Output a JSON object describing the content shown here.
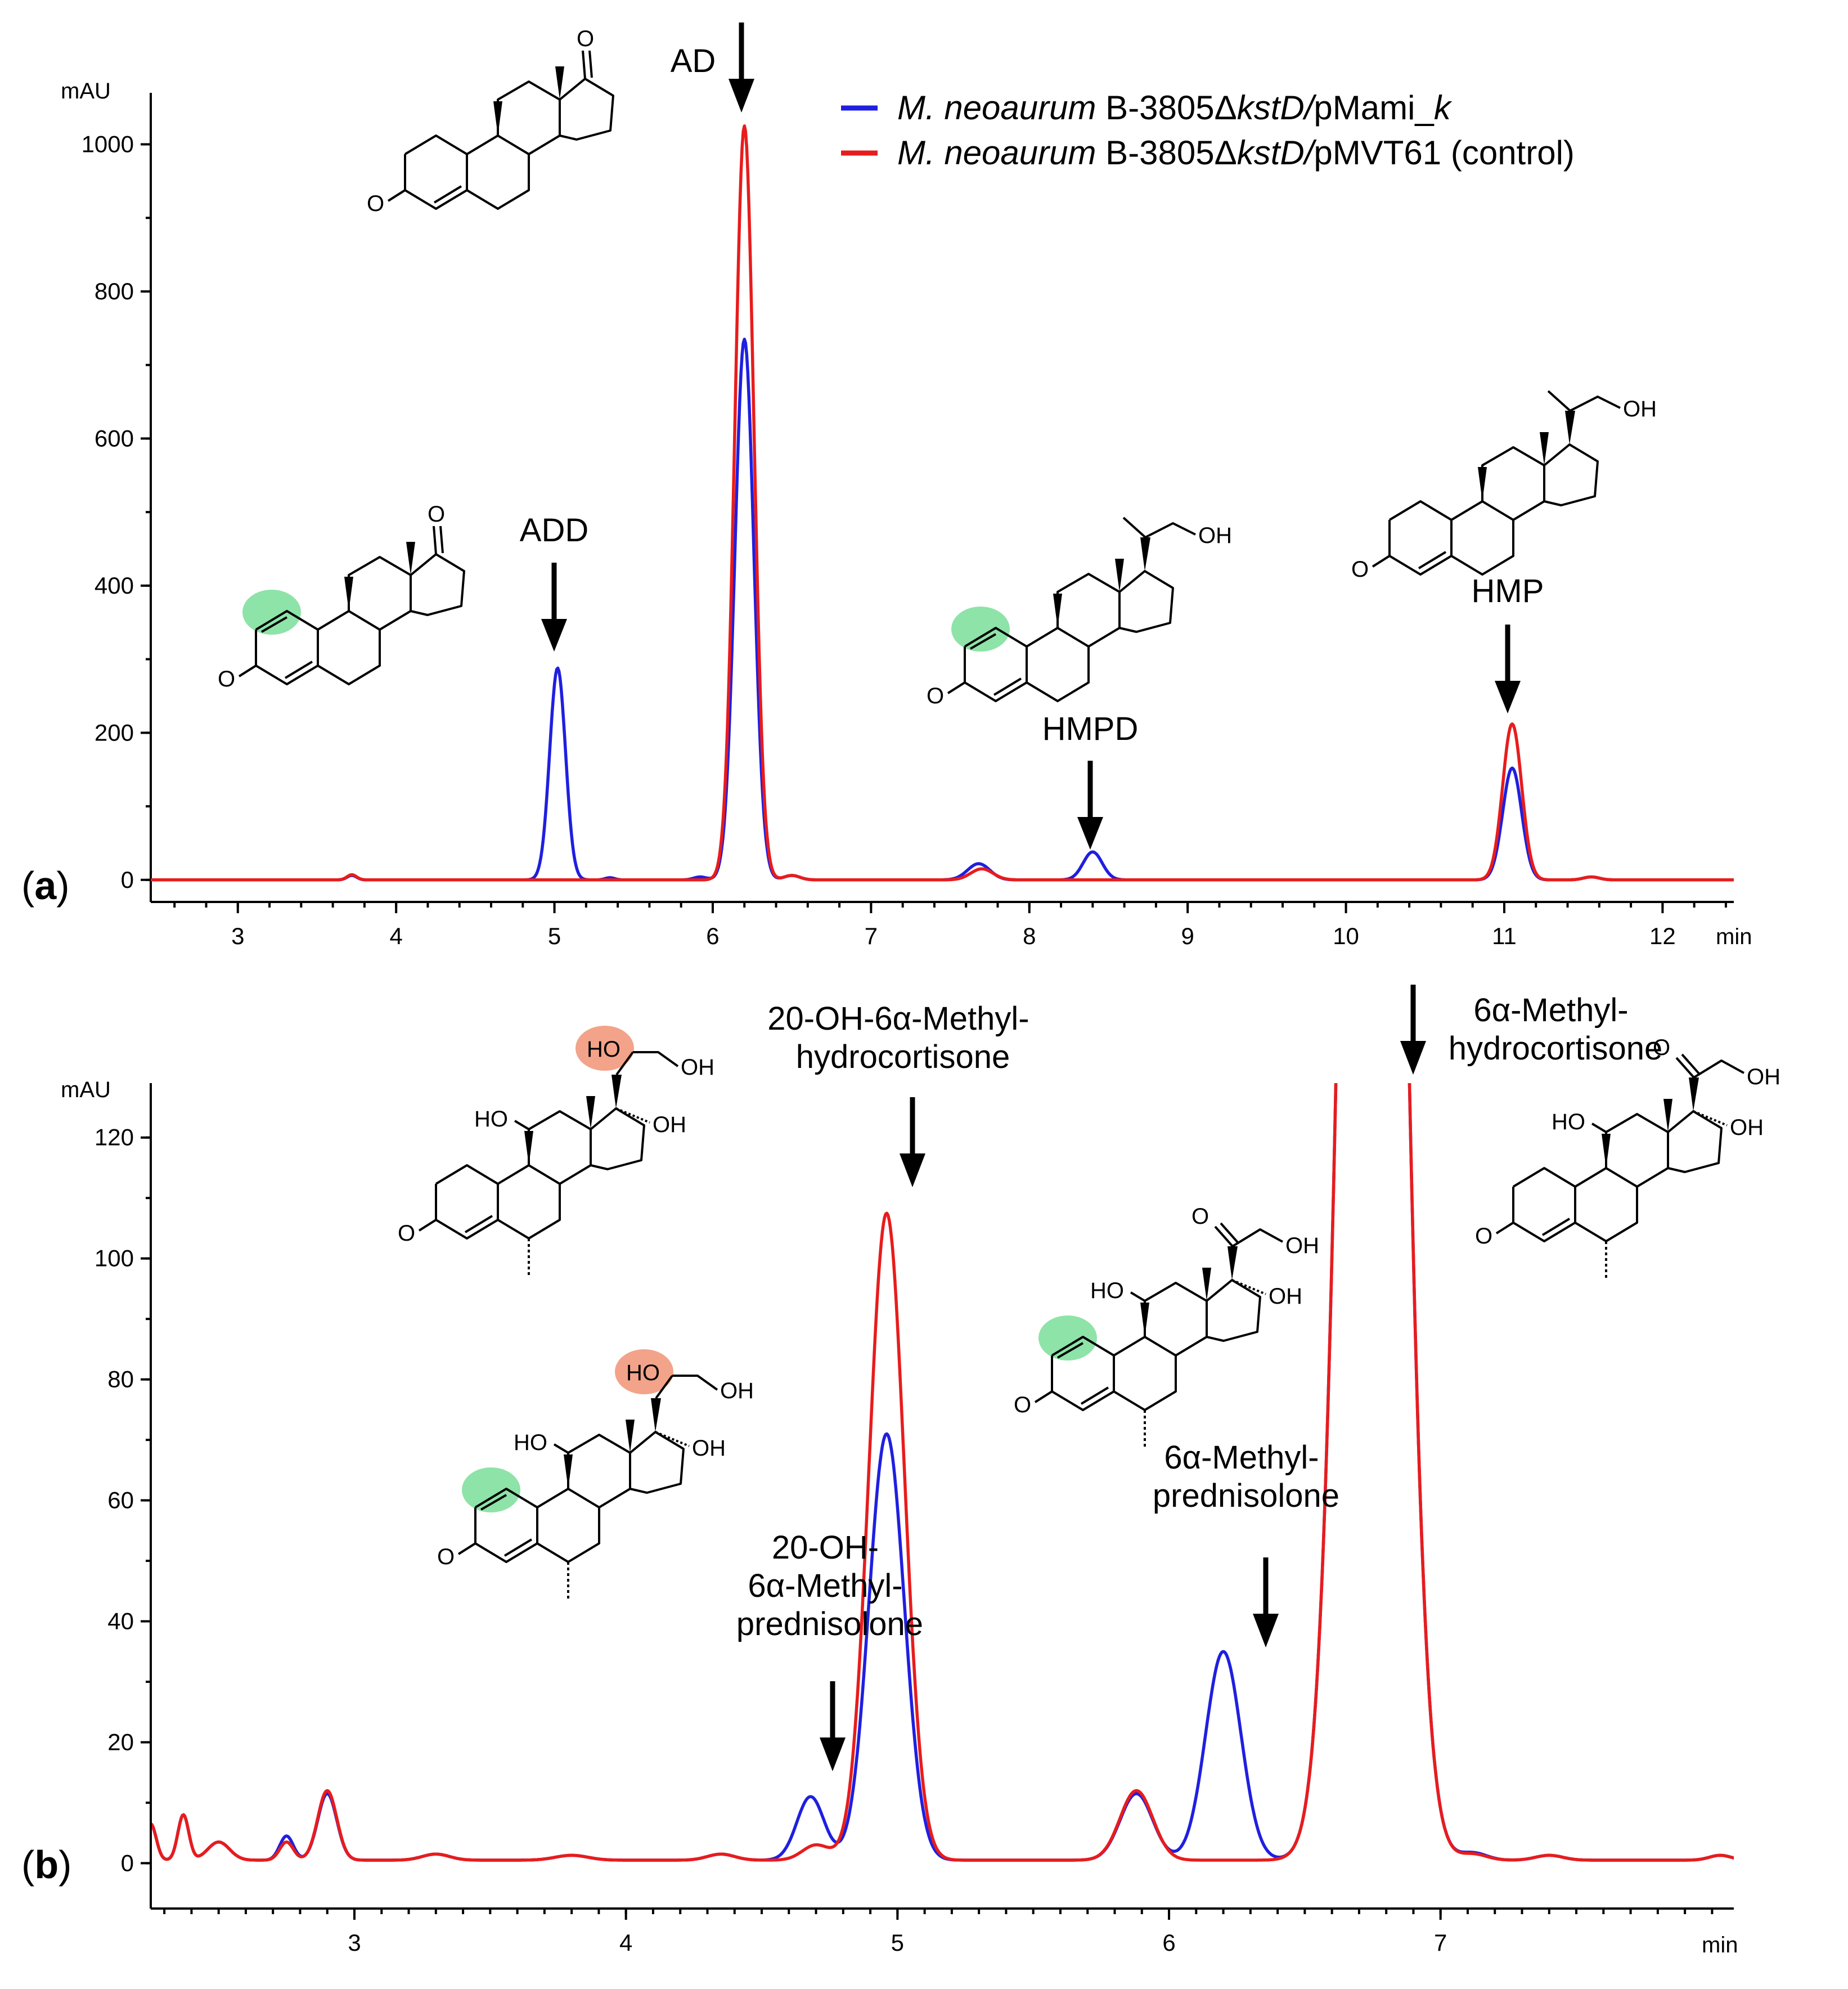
{
  "colors": {
    "series_pmami": "#1f1fe0",
    "series_control": "#e81c1c",
    "highlight_green": "#8ee3a8",
    "highlight_salmon": "#f2a389",
    "axis": "#000000"
  },
  "legend": {
    "items": [
      {
        "organism": "M. neoaurum",
        "strain": " B-3805Δ",
        "gene": "kstD/",
        "plasmid": "pMami_",
        "plasmid_italic": "k",
        "suffix": ""
      },
      {
        "organism": "M. neoaurum",
        "strain": " B-3805Δ",
        "gene": "kstD/",
        "plasmid": "pMVT61",
        "plasmid_italic": "",
        "suffix": " (control)"
      }
    ]
  },
  "panels": [
    {
      "tag_open": "(",
      "tag": "a",
      "tag_close": ")",
      "y_unit": "mAU",
      "x_unit": "min",
      "peak_labels": [
        "ADD",
        "AD",
        "HMPD",
        "HMP"
      ],
      "structure_text": {
        "add": [
          "O"
        ],
        "ad": [
          "O",
          "O"
        ],
        "hmpd": [
          "O",
          "OH"
        ],
        "hmp": [
          "O",
          "OH"
        ]
      }
    },
    {
      "tag_open": "(",
      "tag": "b",
      "tag_close": ")",
      "y_unit": "mAU",
      "x_unit": "min",
      "peak_labels": [
        [
          "20-OH-",
          "6α-Methyl-",
          "prednisolone"
        ],
        [
          "20-OH-6α-Methyl-",
          "hydrocortisone"
        ],
        [
          "6α-Methyl-",
          "prednisolone"
        ],
        [
          "6α-Methyl-",
          "hydrocortisone"
        ]
      ],
      "structure_text": {
        "hydroxy_hc": [
          "HO",
          "OH",
          "HO",
          "OH",
          "O"
        ],
        "hydroxy_pred": [
          "HO",
          "OH",
          "HO",
          "OH",
          "O"
        ],
        "mpred": [
          "O",
          "OH",
          "HO",
          "OH",
          "O"
        ],
        "mhc": [
          "O",
          "OH",
          "HO",
          "OH",
          "O"
        ]
      }
    }
  ],
  "chart_data": [
    {
      "type": "line",
      "title": "",
      "xlabel": "min",
      "ylabel": "mAU",
      "xlim": [
        2.45,
        12.45
      ],
      "ylim": [
        -30,
        1070
      ],
      "xticks": [
        3,
        4,
        5,
        6,
        7,
        8,
        9,
        10,
        11,
        12
      ],
      "yticks": [
        0,
        200,
        400,
        600,
        800,
        1000
      ],
      "series": [
        {
          "name": "M. neoaurum B-3805ΔkstD/pMami_k",
          "color": "#1f1fe0",
          "baseline": 0,
          "peaks": [
            [
              3.72,
              6,
              0.03
            ],
            [
              5.02,
              288,
              0.05
            ],
            [
              5.35,
              3,
              0.03
            ],
            [
              5.92,
              4,
              0.04
            ],
            [
              6.2,
              735,
              0.06
            ],
            [
              6.5,
              6,
              0.05
            ],
            [
              7.68,
              22,
              0.07
            ],
            [
              8.4,
              38,
              0.06
            ],
            [
              11.05,
              152,
              0.06
            ],
            [
              11.55,
              4,
              0.05
            ]
          ]
        },
        {
          "name": "M. neoaurum B-3805ΔkstD/pMVT61 (control)",
          "color": "#e81c1c",
          "baseline": 0,
          "peaks": [
            [
              3.72,
              7,
              0.03
            ],
            [
              6.2,
              1025,
              0.06
            ],
            [
              6.5,
              6,
              0.05
            ],
            [
              7.7,
              15,
              0.07
            ],
            [
              11.05,
              212,
              0.06
            ],
            [
              11.55,
              4,
              0.05
            ]
          ]
        }
      ]
    },
    {
      "type": "line",
      "title": "",
      "xlabel": "min",
      "ylabel": "mAU",
      "xlim": [
        2.25,
        8.08
      ],
      "ylim": [
        -7.5,
        129
      ],
      "xticks": [
        3,
        4,
        5,
        6,
        7
      ],
      "yticks": [
        0,
        20,
        40,
        60,
        80,
        100,
        120
      ],
      "series": [
        {
          "name": "M. neoaurum B-3805ΔkstD/pMami_k",
          "color": "#1f1fe0",
          "baseline": 0.5,
          "peaks": [
            [
              2.25,
              6,
              0.02
            ],
            [
              2.37,
              7.5,
              0.02
            ],
            [
              2.5,
              3,
              0.04
            ],
            [
              2.75,
              4,
              0.025
            ],
            [
              2.9,
              11,
              0.035
            ],
            [
              3.3,
              1,
              0.05
            ],
            [
              3.8,
              0.8,
              0.06
            ],
            [
              4.35,
              1,
              0.05
            ],
            [
              4.68,
              10.5,
              0.05
            ],
            [
              4.96,
              70.5,
              0.065
            ],
            [
              5.88,
              11,
              0.06
            ],
            [
              6.2,
              34.5,
              0.065
            ],
            [
              6.75,
              400,
              0.09
            ],
            [
              7.12,
              1.2,
              0.05
            ],
            [
              7.4,
              0.8,
              0.05
            ],
            [
              8.03,
              0.8,
              0.04
            ]
          ]
        },
        {
          "name": "M. neoaurum B-3805ΔkstD/pMVT61 (control)",
          "color": "#e81c1c",
          "baseline": 0.5,
          "peaks": [
            [
              2.25,
              6,
              0.02
            ],
            [
              2.37,
              7.5,
              0.02
            ],
            [
              2.5,
              3,
              0.04
            ],
            [
              2.75,
              3,
              0.025
            ],
            [
              2.9,
              11.5,
              0.035
            ],
            [
              3.3,
              1,
              0.05
            ],
            [
              3.8,
              0.8,
              0.06
            ],
            [
              4.35,
              1,
              0.05
            ],
            [
              4.7,
              2.5,
              0.05
            ],
            [
              4.96,
              107,
              0.065
            ],
            [
              5.88,
              11.5,
              0.06
            ],
            [
              6.75,
              400,
              0.09
            ],
            [
              7.12,
              1,
              0.05
            ],
            [
              7.4,
              0.8,
              0.05
            ],
            [
              8.03,
              0.8,
              0.04
            ]
          ]
        }
      ]
    }
  ]
}
